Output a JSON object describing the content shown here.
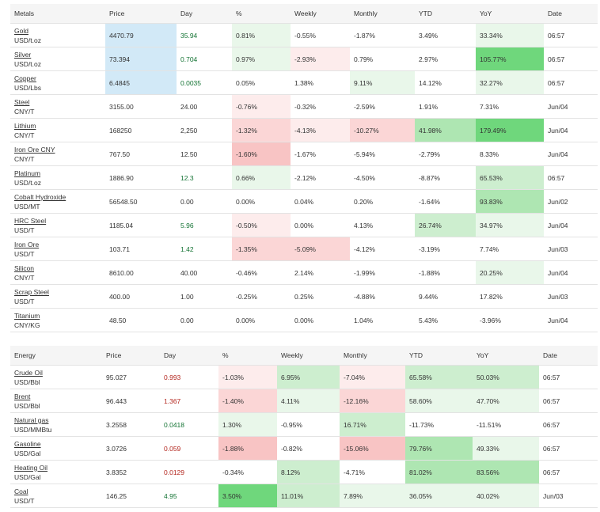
{
  "metals": {
    "headers": [
      "Metals",
      "Price",
      "Day",
      "%",
      "Weekly",
      "Monthly",
      "YTD",
      "YoY",
      "Date"
    ],
    "rows": [
      {
        "name": "Gold",
        "unit": "USD/t.oz",
        "price": "4470.79",
        "day": "35.94",
        "pct": "0.81%",
        "weekly": "-0.55%",
        "monthly": "-1.87%",
        "ytd": "3.49%",
        "yoy": "33.34%",
        "date": "06:57"
      },
      {
        "name": "Silver",
        "unit": "USD/t.oz",
        "price": "73.394",
        "day": "0.704",
        "pct": "0.97%",
        "weekly": "-2.93%",
        "monthly": "0.79%",
        "ytd": "2.97%",
        "yoy": "105.77%",
        "date": "06:57"
      },
      {
        "name": "Copper",
        "unit": "USD/Lbs",
        "price": "6.4845",
        "day": "0.0035",
        "pct": "0.05%",
        "weekly": "1.38%",
        "monthly": "9.11%",
        "ytd": "14.12%",
        "yoy": "32.27%",
        "date": "06:57"
      },
      {
        "name": "Steel",
        "unit": "CNY/T",
        "price": "3155.00",
        "day": "24.00",
        "pct": "-0.76%",
        "weekly": "-0.32%",
        "monthly": "-2.59%",
        "ytd": "1.91%",
        "yoy": "7.31%",
        "date": "Jun/04"
      },
      {
        "name": "Lithium",
        "unit": "CNY/T",
        "price": "168250",
        "day": "2,250",
        "pct": "-1.32%",
        "weekly": "-4.13%",
        "monthly": "-10.27%",
        "ytd": "41.98%",
        "yoy": "179.49%",
        "date": "Jun/04"
      },
      {
        "name": "Iron Ore CNY",
        "unit": "CNY/T",
        "price": "767.50",
        "day": "12.50",
        "pct": "-1.60%",
        "weekly": "-1.67%",
        "monthly": "-5.94%",
        "ytd": "-2.79%",
        "yoy": "8.33%",
        "date": "Jun/04"
      },
      {
        "name": "Platinum",
        "unit": "USD/t.oz",
        "price": "1886.90",
        "day": "12.3",
        "pct": "0.66%",
        "weekly": "-2.12%",
        "monthly": "-4.50%",
        "ytd": "-8.87%",
        "yoy": "65.53%",
        "date": "06:57"
      },
      {
        "name": "Cobalt Hydroxide",
        "unit": "USD/MT",
        "price": "56548.50",
        "day": "0.00",
        "pct": "0.00%",
        "weekly": "0.04%",
        "monthly": "0.20%",
        "ytd": "-1.64%",
        "yoy": "93.83%",
        "date": "Jun/02"
      },
      {
        "name": "HRC Steel",
        "unit": "USD/T",
        "price": "1185.04",
        "day": "5.96",
        "pct": "-0.50%",
        "weekly": "0.00%",
        "monthly": "4.13%",
        "ytd": "26.74%",
        "yoy": "34.97%",
        "date": "Jun/04"
      },
      {
        "name": "Iron Ore",
        "unit": "USD/T",
        "price": "103.71",
        "day": "1.42",
        "pct": "-1.35%",
        "weekly": "-5.09%",
        "monthly": "-4.12%",
        "ytd": "-3.19%",
        "yoy": "7.74%",
        "date": "Jun/03"
      },
      {
        "name": "Silicon",
        "unit": "CNY/T",
        "price": "8610.00",
        "day": "40.00",
        "pct": "-0.46%",
        "weekly": "2.14%",
        "monthly": "-1.99%",
        "ytd": "-1.88%",
        "yoy": "20.25%",
        "date": "Jun/04"
      },
      {
        "name": "Scrap Steel",
        "unit": "USD/T",
        "price": "400.00",
        "day": "1.00",
        "pct": "-0.25%",
        "weekly": "0.25%",
        "monthly": "-4.88%",
        "ytd": "9.44%",
        "yoy": "17.82%",
        "date": "Jun/03"
      },
      {
        "name": "Titanium",
        "unit": "CNY/KG",
        "price": "48.50",
        "day": "0.00",
        "pct": "0.00%",
        "weekly": "0.00%",
        "monthly": "1.04%",
        "ytd": "5.43%",
        "yoy": "-3.96%",
        "date": "Jun/04"
      }
    ]
  },
  "energy": {
    "headers": [
      "Energy",
      "Price",
      "Day",
      "%",
      "Weekly",
      "Monthly",
      "YTD",
      "YoY",
      "Date"
    ],
    "rows": [
      {
        "name": "Crude Oil",
        "unit": "USD/Bbl",
        "price": "95.027",
        "day": "0.993",
        "pct": "-1.03%",
        "weekly": "6.95%",
        "monthly": "-7.04%",
        "ytd": "65.58%",
        "yoy": "50.03%",
        "date": "06:57"
      },
      {
        "name": "Brent",
        "unit": "USD/Bbl",
        "price": "96.443",
        "day": "1.367",
        "pct": "-1.40%",
        "weekly": "4.11%",
        "monthly": "-12.16%",
        "ytd": "58.60%",
        "yoy": "47.70%",
        "date": "06:57"
      },
      {
        "name": "Natural gas",
        "unit": "USD/MMBtu",
        "price": "3.2558",
        "day": "0.0418",
        "pct": "1.30%",
        "weekly": "-0.95%",
        "monthly": "16.71%",
        "ytd": "-11.73%",
        "yoy": "-11.51%",
        "date": "06:57"
      },
      {
        "name": "Gasoline",
        "unit": "USD/Gal",
        "price": "3.0726",
        "day": "0.059",
        "pct": "-1.88%",
        "weekly": "-0.82%",
        "monthly": "-15.06%",
        "ytd": "79.76%",
        "yoy": "49.33%",
        "date": "06:57"
      },
      {
        "name": "Heating Oil",
        "unit": "USD/Gal",
        "price": "3.8352",
        "day": "0.0129",
        "pct": "-0.34%",
        "weekly": "8.12%",
        "monthly": "-4.71%",
        "ytd": "81.02%",
        "yoy": "83.56%",
        "date": "06:57"
      },
      {
        "name": "Coal",
        "unit": "USD/T",
        "price": "146.25",
        "day": "4.95",
        "pct": "3.50%",
        "weekly": "11.01%",
        "monthly": "7.89%",
        "ytd": "36.05%",
        "yoy": "40.02%",
        "date": "Jun/03"
      }
    ]
  },
  "colors": {
    "price_highlight": "#d2e9f7",
    "positive_text": "#137333",
    "negative_text": "#b3261e",
    "header_bg": "#f5f5f5"
  }
}
